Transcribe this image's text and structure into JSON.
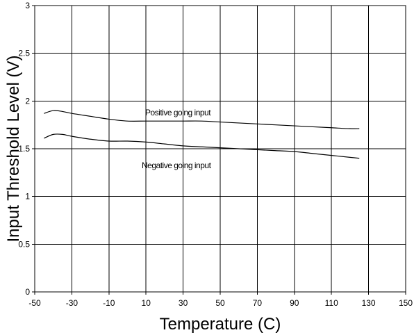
{
  "chart_data": {
    "type": "line",
    "title": "",
    "xlabel": "Temperature (C)",
    "ylabel": "Input Threshold Level (V)",
    "xlim": [
      -50,
      150
    ],
    "ylim": [
      0,
      3
    ],
    "x_ticks": [
      "-50",
      "-30",
      "-10",
      "10",
      "30",
      "50",
      "70",
      "90",
      "110",
      "130",
      "150"
    ],
    "y_ticks": [
      "0",
      "0.5",
      "1",
      "1.5",
      "2",
      "2.5",
      "3"
    ],
    "grid": true,
    "series": [
      {
        "name": "Positive going input",
        "x": [
          -45,
          -40,
          -35,
          -30,
          -20,
          -10,
          0,
          10,
          20,
          30,
          40,
          50,
          60,
          70,
          80,
          90,
          100,
          110,
          120,
          125
        ],
        "y": [
          1.87,
          1.9,
          1.89,
          1.87,
          1.84,
          1.81,
          1.79,
          1.79,
          1.79,
          1.79,
          1.79,
          1.78,
          1.77,
          1.76,
          1.75,
          1.74,
          1.73,
          1.72,
          1.71,
          1.71
        ]
      },
      {
        "name": "Negative going input",
        "x": [
          -45,
          -40,
          -35,
          -30,
          -20,
          -10,
          0,
          10,
          20,
          30,
          40,
          50,
          60,
          70,
          80,
          90,
          100,
          110,
          120,
          125
        ],
        "y": [
          1.61,
          1.65,
          1.65,
          1.63,
          1.6,
          1.58,
          1.58,
          1.57,
          1.55,
          1.53,
          1.52,
          1.51,
          1.5,
          1.49,
          1.48,
          1.47,
          1.45,
          1.43,
          1.41,
          1.4
        ]
      }
    ]
  }
}
